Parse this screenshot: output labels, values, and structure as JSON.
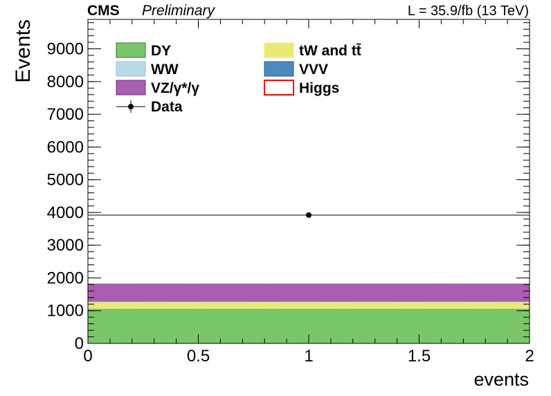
{
  "header": {
    "experiment": "CMS",
    "status": "Preliminary",
    "lumi": "L = 35.9/fb (13 TeV)"
  },
  "chart_data": {
    "type": "bar",
    "subtype": "stacked-histogram",
    "xlabel": "events",
    "ylabel": "Events",
    "xlim": [
      0,
      2
    ],
    "ylim": [
      0,
      9900
    ],
    "x_ticks": [
      "0",
      "0.5",
      "1",
      "1.5",
      "2"
    ],
    "y_ticks": [
      "0",
      "1000",
      "2000",
      "3000",
      "4000",
      "5000",
      "6000",
      "7000",
      "8000",
      "9000"
    ],
    "bin_edges": [
      0,
      2
    ],
    "stack": [
      {
        "name": "DY",
        "value": 1060,
        "color": "#7fcf6f"
      },
      {
        "name": "tW and tt̄",
        "value": 190,
        "color": "#f4f47a"
      },
      {
        "name": "WW",
        "value": 20,
        "color": "#bfe3f0"
      },
      {
        "name": "VVV",
        "value": 5,
        "color": "#4f8fc7"
      },
      {
        "name": "VZ/γ*/γ",
        "value": 545,
        "color": "#b061b8"
      },
      {
        "name": "Higgs",
        "value": 5,
        "color": "#ff0000"
      }
    ],
    "data_points": [
      {
        "name": "Data",
        "x": 1,
        "y": 3920,
        "x_err": 1
      }
    ],
    "legend": {
      "placement": "top-left",
      "entries": [
        {
          "label": "DY",
          "style": "fill",
          "color": "#7fcf6f",
          "edge": "#3a7a32"
        },
        {
          "label": "tW and tt̄",
          "style": "fill",
          "color": "#f4f47a",
          "edge": "#f4f47a"
        },
        {
          "label": "WW",
          "style": "fill",
          "color": "#bfe3f0",
          "edge": "#9ccde0"
        },
        {
          "label": "VVV",
          "style": "fill",
          "color": "#4f8fc7",
          "edge": "#2a5f90"
        },
        {
          "label": "VZ/γ*/γ",
          "style": "fill",
          "color": "#b061b8",
          "edge": "#7a2f80"
        },
        {
          "label": "Higgs",
          "style": "line",
          "color": "#ffffff",
          "edge": "#ff0000"
        },
        {
          "label": "Data",
          "style": "marker",
          "color": "#000000",
          "edge": "#000000"
        }
      ]
    },
    "grid": false
  }
}
